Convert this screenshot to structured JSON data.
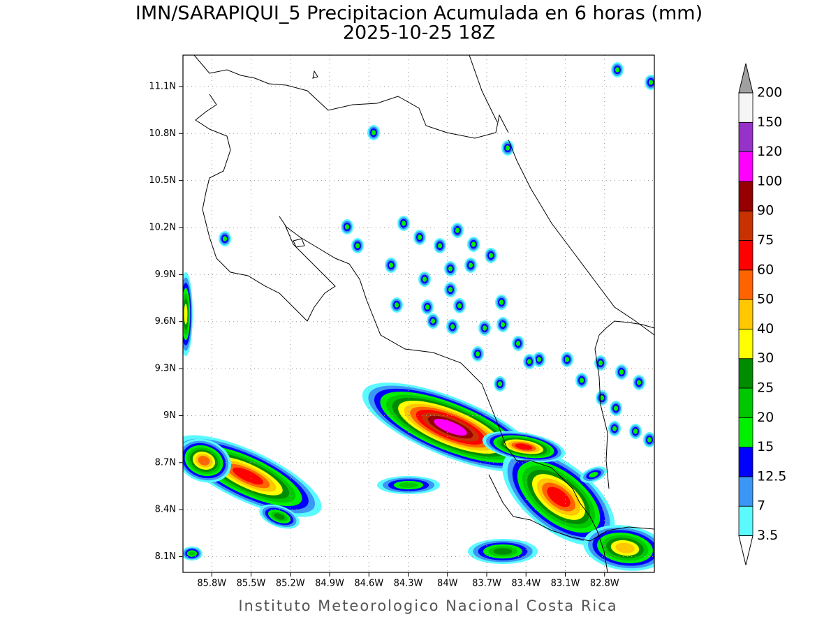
{
  "map": {
    "title": "IMN/SARAPIQUI_5 Precipitacion Acumulada en 6 horas (mm)",
    "subtitle": "2025-10-25 18Z",
    "footer": "Instituto Meteorologico Nacional Costa Rica",
    "xlim": [
      -86.02,
      -82.42
    ],
    "ylim": [
      8.0,
      11.3
    ],
    "grid": true,
    "xticks": [
      {
        "value": -85.8,
        "label": "85.8W"
      },
      {
        "value": -85.5,
        "label": "85.5W"
      },
      {
        "value": -85.2,
        "label": "85.2W"
      },
      {
        "value": -84.9,
        "label": "84.9W"
      },
      {
        "value": -84.6,
        "label": "84.6W"
      },
      {
        "value": -84.3,
        "label": "84.3W"
      },
      {
        "value": -84.0,
        "label": "84W"
      },
      {
        "value": -83.7,
        "label": "83.7W"
      },
      {
        "value": -83.4,
        "label": "83.4W"
      },
      {
        "value": -83.1,
        "label": "83.1W"
      },
      {
        "value": -82.8,
        "label": "82.8W"
      }
    ],
    "yticks": [
      {
        "value": 8.1,
        "label": "8.1N"
      },
      {
        "value": 8.4,
        "label": "8.4N"
      },
      {
        "value": 8.7,
        "label": "8.7N"
      },
      {
        "value": 9.0,
        "label": "9N"
      },
      {
        "value": 9.3,
        "label": "9.3N"
      },
      {
        "value": 9.6,
        "label": "9.6N"
      },
      {
        "value": 9.9,
        "label": "9.9N"
      },
      {
        "value": 10.2,
        "label": "10.2N"
      },
      {
        "value": 10.5,
        "label": "10.5N"
      },
      {
        "value": 10.8,
        "label": "10.8N"
      },
      {
        "value": 11.1,
        "label": "11.1N"
      }
    ],
    "colorbar": {
      "levels": [
        3.5,
        7,
        12.5,
        15,
        20,
        25,
        30,
        40,
        50,
        60,
        75,
        90,
        100,
        120,
        150,
        200
      ],
      "colors": [
        "#5afaff",
        "#3c96f5",
        "#0000ff",
        "#00f000",
        "#00c800",
        "#008c00",
        "#ffff00",
        "#ffc800",
        "#ff6400",
        "#ff0000",
        "#c83200",
        "#960000",
        "#ff00ff",
        "#9632c8",
        "#f5f5f5"
      ],
      "under_color": "#ffffff",
      "over_color": "#a0a0a0"
    }
  }
}
